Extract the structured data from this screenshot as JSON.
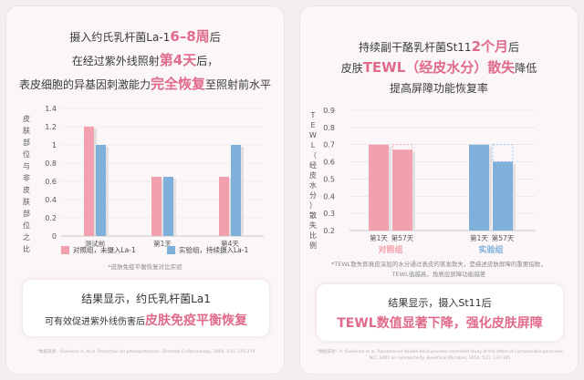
{
  "colors": {
    "pink": "#f2a0ad",
    "blue": "#7eb0d9",
    "accent": "#e06b8a"
  },
  "left": {
    "headline": [
      [
        "摄入约氏乳杆菌La-1",
        "6–8周",
        "后"
      ],
      [
        "在经过紫外线照射",
        "第4天",
        "后，"
      ],
      [
        "表皮细胞的异基因刺激能力",
        "完全恢复",
        "至照射前水平"
      ]
    ],
    "legend": {
      "control": "对照组，未摄入La-1",
      "experiment": "实验组，持续摄入La-1"
    },
    "note": "*皮肤免疫平衡恢复对比实验",
    "result": {
      "line1": "结果显示，约氏乳杆菌La1",
      "line2_prefix": "可有效促进紫外线伤害后",
      "line2_em": "皮肤免疫平衡恢复"
    },
    "ref": "*数据来源：Guéniche A, et al. Protection for photoprotection. Dermato-Endocrinology, 2009, 1(5): 275-279"
  },
  "right": {
    "headline": [
      [
        "持续副干酪乳杆菌St11",
        "2个月",
        "后"
      ],
      [
        "皮肤",
        "TEWL（经皮水分）散失",
        "降低"
      ],
      [
        "提高屏障功能恢复率",
        "",
        ""
      ]
    ],
    "note": [
      "*TEWL散失即真皮深层的水分通过表皮的蒸发散失，是描述皮肤屏障的重要指数，",
      "TEWL值越高，角质层屏障功能越差"
    ],
    "result": {
      "line1": "结果显示，摄入St11后",
      "line2": "TEWL数值显著下降，强化皮肤屏障"
    },
    "ref": "*数据来源：A. Guéniche et al. Randomised double-blind placebo-controlled study of the effect of Lactobacillus paracasei NCC 2461 on nonreactivity. Beneficial Microbes, 2014; 5(2): 137-145"
  },
  "chart_data": [
    {
      "type": "bar",
      "ylabel": "皮肤部位与非皮肤部位之比",
      "ylim": [
        0,
        1.4
      ],
      "yticks": [
        "0",
        "0.2",
        "0.4",
        "0.6",
        "0.8",
        "1",
        "1.2",
        "1.4"
      ],
      "categories": [
        "测试前",
        "第1天",
        "第4天"
      ],
      "series": [
        {
          "name": "对照组，未摄入La-1",
          "color": "#f2a0ad",
          "values": [
            1.2,
            0.65,
            0.65
          ]
        },
        {
          "name": "实验组，持续摄入La-1",
          "color": "#7eb0d9",
          "values": [
            1.0,
            0.65,
            1.0
          ]
        }
      ]
    },
    {
      "type": "bar",
      "ylabel": "TEWL（经皮水分）散失比例",
      "ylim": [
        0.2,
        0.9
      ],
      "yticks": [
        "0.2",
        "0.3",
        "0.4",
        "0.5",
        "0.6",
        "0.7",
        "0.8",
        "0.9"
      ],
      "groups": [
        {
          "name": "对照组",
          "color": "#f2a0ad",
          "categories": [
            "第1天",
            "第57天"
          ],
          "values": [
            0.7,
            0.67
          ]
        },
        {
          "name": "实验组",
          "color": "#7eb0d9",
          "categories": [
            "第1天",
            "第57天"
          ],
          "values": [
            0.7,
            0.6
          ]
        }
      ]
    }
  ]
}
